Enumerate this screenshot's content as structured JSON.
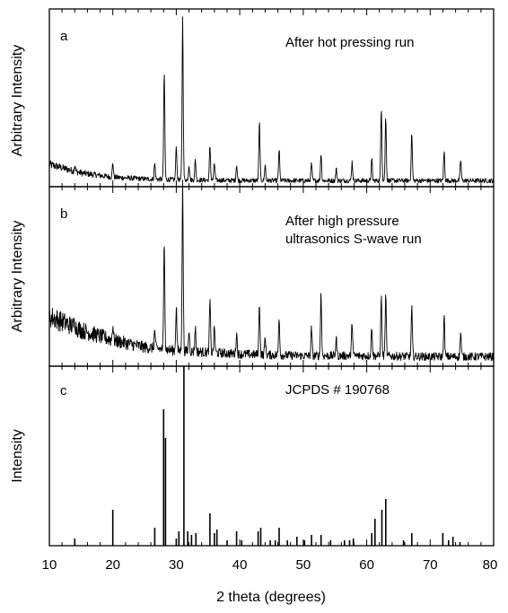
{
  "chart_data": [
    {
      "panel": "a",
      "type": "line",
      "annotation": "After hot pressing run",
      "ylabel": "Arbitrary Intensity",
      "xlim": [
        10,
        80
      ],
      "ylim": [
        0,
        1
      ],
      "baseline": {
        "x": [
          10,
          15,
          20,
          25,
          30,
          35,
          40,
          50,
          60,
          70,
          80
        ],
        "y": [
          0.12,
          0.07,
          0.045,
          0.035,
          0.03,
          0.028,
          0.026,
          0.025,
          0.025,
          0.025,
          0.025
        ]
      },
      "peaks": {
        "x": [
          14.0,
          20.0,
          26.6,
          28.1,
          30.0,
          31.0,
          32.0,
          33.0,
          35.3,
          36.0,
          39.5,
          43.1,
          44.0,
          46.2,
          51.3,
          52.8,
          55.2,
          57.7,
          60.8,
          62.3,
          63.0,
          67.1,
          72.2,
          74.8
        ],
        "y": [
          0.03,
          0.08,
          0.09,
          0.63,
          0.2,
          0.95,
          0.09,
          0.12,
          0.2,
          0.1,
          0.09,
          0.34,
          0.09,
          0.18,
          0.1,
          0.16,
          0.07,
          0.11,
          0.12,
          0.43,
          0.37,
          0.28,
          0.17,
          0.12
        ]
      }
    },
    {
      "panel": "b",
      "type": "line",
      "annotation": [
        "After high pressure",
        "ultrasonics S-wave run"
      ],
      "ylabel": "Arbitrary Intensity",
      "xlim": [
        10,
        80
      ],
      "ylim": [
        0,
        1
      ],
      "baseline": {
        "x": [
          10,
          15,
          20,
          25,
          30,
          35,
          40,
          50,
          60,
          70,
          80
        ],
        "y": [
          0.28,
          0.2,
          0.14,
          0.1,
          0.08,
          0.07,
          0.06,
          0.05,
          0.05,
          0.045,
          0.045
        ]
      },
      "peaks": {
        "x": [
          14.0,
          20.0,
          26.6,
          28.1,
          30.0,
          31.0,
          32.0,
          33.0,
          35.3,
          36.0,
          39.5,
          43.1,
          44.0,
          46.2,
          51.3,
          52.8,
          55.2,
          57.7,
          60.8,
          62.3,
          63.0,
          67.1,
          72.2,
          74.8
        ],
        "y": [
          0.04,
          0.09,
          0.1,
          0.62,
          0.26,
          0.97,
          0.12,
          0.14,
          0.3,
          0.15,
          0.12,
          0.3,
          0.1,
          0.22,
          0.16,
          0.36,
          0.1,
          0.2,
          0.17,
          0.34,
          0.34,
          0.28,
          0.23,
          0.14
        ]
      }
    },
    {
      "panel": "c",
      "type": "bar",
      "annotation": "JCPDS # 190768",
      "ylabel": "Intensity",
      "xlabel": "2 theta (degrees)",
      "xlim": [
        10,
        80
      ],
      "ylim": [
        0,
        1
      ],
      "xticks": [
        10,
        20,
        30,
        40,
        50,
        60,
        70,
        80
      ],
      "x": [
        14.0,
        20.0,
        26.6,
        28.0,
        28.3,
        30.0,
        30.4,
        31.2,
        31.8,
        32.4,
        33.1,
        35.3,
        36.0,
        36.4,
        38.0,
        39.5,
        40.3,
        42.9,
        43.3,
        44.8,
        45.6,
        46.2,
        47.5,
        49.0,
        50.2,
        51.3,
        52.8,
        54.3,
        56.5,
        57.3,
        57.9,
        60.8,
        61.3,
        62.4,
        63.0,
        65.8,
        67.1,
        72.0,
        72.9,
        73.6,
        74.7
      ],
      "y": [
        0.04,
        0.2,
        0.1,
        0.76,
        0.6,
        0.04,
        0.08,
        1.0,
        0.08,
        0.06,
        0.07,
        0.18,
        0.07,
        0.09,
        0.03,
        0.08,
        0.03,
        0.08,
        0.1,
        0.03,
        0.03,
        0.1,
        0.03,
        0.05,
        0.03,
        0.06,
        0.06,
        0.03,
        0.03,
        0.03,
        0.04,
        0.07,
        0.15,
        0.2,
        0.26,
        0.03,
        0.07,
        0.07,
        0.03,
        0.05,
        0.02
      ]
    }
  ]
}
